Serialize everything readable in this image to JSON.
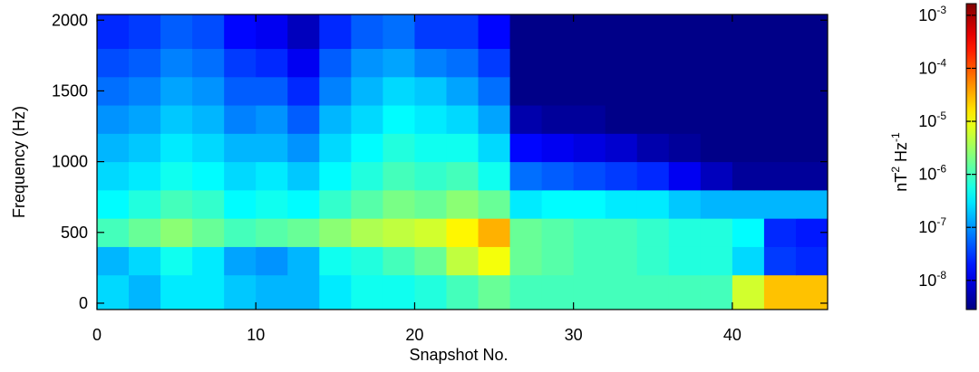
{
  "chart_data": {
    "type": "heatmap",
    "xlabel": "Snapshot No.",
    "ylabel": "Frequency (Hz)",
    "xlim": [
      0,
      46
    ],
    "ylim": [
      -45,
      2040
    ],
    "xticks": [
      0,
      10,
      20,
      30,
      40
    ],
    "yticks": [
      0,
      500,
      1000,
      1500,
      2000
    ],
    "xbins": [
      0,
      2,
      4,
      6,
      8,
      10,
      12,
      14,
      16,
      18,
      20,
      22,
      24,
      26,
      28,
      30,
      32,
      34,
      36,
      38,
      40,
      42,
      44,
      46
    ],
    "ybins": [
      -45,
      200,
      400,
      600,
      800,
      1000,
      1200,
      1400,
      1600,
      1800,
      2040
    ],
    "colormap": "jet",
    "clim": [
      -8.55,
      -2.78
    ],
    "cticks": [
      {
        "value": -3,
        "label": "10",
        "sup": "-3"
      },
      {
        "value": -4,
        "label": "10",
        "sup": "-4"
      },
      {
        "value": -5,
        "label": "10",
        "sup": "-5"
      },
      {
        "value": -6,
        "label": "10",
        "sup": "-6"
      },
      {
        "value": -7,
        "label": "10",
        "sup": "-7"
      },
      {
        "value": -8,
        "label": "10",
        "sup": "-8"
      }
    ],
    "clabel": [
      {
        "text": "nT"
      },
      {
        "text": "2",
        "sup": true
      },
      {
        "text": " Hz"
      },
      {
        "text": "-1",
        "sup": true
      }
    ],
    "z": [
      [
        -6.6,
        -6.8,
        -6.5,
        -6.5,
        -6.7,
        -6.8,
        -6.8,
        -6.5,
        -6.3,
        -6.3,
        -6.2,
        -6.0,
        -5.8,
        -6.0,
        -6.0,
        -6.0,
        -6.0,
        -6.0,
        -6.0,
        -6.0,
        -5.2,
        -4.6,
        -4.6
      ],
      [
        -6.8,
        -6.6,
        -6.3,
        -6.5,
        -6.9,
        -7.0,
        -6.8,
        -6.3,
        -6.2,
        -6.0,
        -5.8,
        -5.3,
        -5.0,
        -5.8,
        -5.9,
        -6.0,
        -6.0,
        -6.1,
        -6.2,
        -6.2,
        -6.6,
        -7.5,
        -7.6
      ],
      [
        -6.0,
        -5.8,
        -5.6,
        -5.8,
        -6.0,
        -5.9,
        -5.8,
        -5.6,
        -5.4,
        -5.3,
        -5.2,
        -4.9,
        -4.5,
        -5.8,
        -5.9,
        -6.0,
        -6.0,
        -6.1,
        -6.2,
        -6.2,
        -6.4,
        -7.6,
        -7.7
      ],
      [
        -6.4,
        -6.2,
        -6.0,
        -6.1,
        -6.4,
        -6.3,
        -6.4,
        -6.1,
        -5.9,
        -5.7,
        -5.8,
        -5.6,
        -5.8,
        -6.5,
        -6.4,
        -6.4,
        -6.5,
        -6.5,
        -6.7,
        -6.8,
        -6.8,
        -6.8,
        -6.8
      ],
      [
        -6.6,
        -6.5,
        -6.3,
        -6.4,
        -6.6,
        -6.5,
        -6.7,
        -6.4,
        -6.2,
        -6.0,
        -6.1,
        -6.0,
        -6.3,
        -7.2,
        -7.3,
        -7.4,
        -7.5,
        -7.6,
        -7.9,
        -8.2,
        -8.4,
        -8.4,
        -8.4
      ],
      [
        -6.8,
        -6.7,
        -6.5,
        -6.6,
        -6.8,
        -6.8,
        -7.0,
        -6.6,
        -6.4,
        -6.2,
        -6.3,
        -6.3,
        -6.6,
        -7.8,
        -7.9,
        -8.0,
        -8.1,
        -8.3,
        -8.4,
        -8.5,
        -8.5,
        -8.5,
        -8.5
      ],
      [
        -7.0,
        -6.9,
        -6.7,
        -6.8,
        -7.1,
        -7.0,
        -7.3,
        -6.8,
        -6.6,
        -6.4,
        -6.5,
        -6.6,
        -6.9,
        -8.3,
        -8.4,
        -8.4,
        -8.5,
        -8.5,
        -8.5,
        -8.5,
        -8.5,
        -8.5,
        -8.5
      ],
      [
        -7.2,
        -7.1,
        -6.9,
        -7.0,
        -7.3,
        -7.3,
        -7.6,
        -7.1,
        -6.8,
        -6.6,
        -6.7,
        -6.9,
        -7.2,
        -8.5,
        -8.5,
        -8.5,
        -8.5,
        -8.5,
        -8.5,
        -8.5,
        -8.5,
        -8.5,
        -8.5
      ],
      [
        -7.4,
        -7.3,
        -7.1,
        -7.2,
        -7.5,
        -7.6,
        -7.9,
        -7.3,
        -7.0,
        -6.9,
        -7.1,
        -7.2,
        -7.5,
        -8.5,
        -8.5,
        -8.5,
        -8.5,
        -8.5,
        -8.5,
        -8.5,
        -8.5,
        -8.5,
        -8.5
      ],
      [
        -7.6,
        -7.5,
        -7.3,
        -7.4,
        -7.8,
        -7.9,
        -8.2,
        -7.6,
        -7.3,
        -7.2,
        -7.5,
        -7.5,
        -7.8,
        -8.5,
        -8.5,
        -8.5,
        -8.5,
        -8.5,
        -8.5,
        -8.5,
        -8.5,
        -8.5,
        -8.5
      ]
    ]
  }
}
